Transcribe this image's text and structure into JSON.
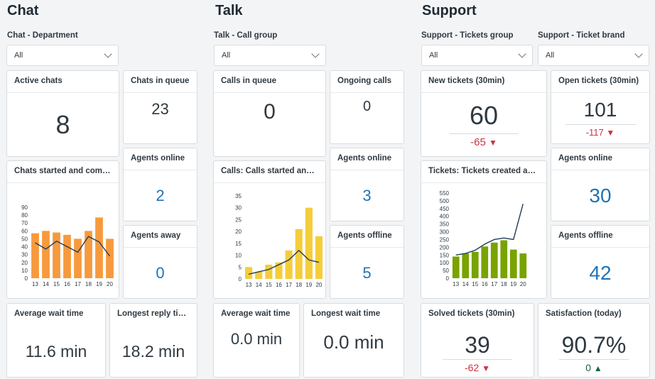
{
  "chat": {
    "title": "Chat",
    "filter": {
      "label": "Chat - Department",
      "value": "All"
    },
    "active_chats": {
      "title": "Active chats",
      "value": "8"
    },
    "chats_in_queue": {
      "title": "Chats in queue",
      "value": "23"
    },
    "agents_online": {
      "title": "Agents online",
      "value": "2"
    },
    "agents_away": {
      "title": "Agents away",
      "value": "0"
    },
    "chart_title": "Chats started and compl...",
    "avg_wait": {
      "title": "Average wait time",
      "value": "11.6 min"
    },
    "longest_reply": {
      "title": "Longest reply time",
      "value": "18.2 min"
    }
  },
  "talk": {
    "title": "Talk",
    "filter": {
      "label": "Talk - Call group",
      "value": "All"
    },
    "calls_in_queue": {
      "title": "Calls in queue",
      "value": "0"
    },
    "ongoing_calls": {
      "title": "Ongoing calls",
      "value": "0"
    },
    "agents_online": {
      "title": "Agents online",
      "value": "3"
    },
    "agents_offline": {
      "title": "Agents offline",
      "value": "5"
    },
    "chart_title": "Calls: Calls started and c...",
    "avg_wait": {
      "title": "Average wait time",
      "value": "0.0 min"
    },
    "longest_wait": {
      "title": "Longest wait time",
      "value": "0.0 min"
    }
  },
  "support": {
    "title": "Support",
    "filter_group": {
      "label": "Support - Tickets group",
      "value": "All"
    },
    "filter_brand": {
      "label": "Support - Ticket brand",
      "value": "All"
    },
    "new_tickets": {
      "title": "New tickets (30min)",
      "value": "60",
      "delta": "-65",
      "delta_dir": "down"
    },
    "open_tickets": {
      "title": "Open tickets (30min)",
      "value": "101",
      "delta": "-117",
      "delta_dir": "down"
    },
    "agents_online": {
      "title": "Agents online",
      "value": "30"
    },
    "agents_offline": {
      "title": "Agents offline",
      "value": "42"
    },
    "chart_title": "Tickets: Tickets created and ...",
    "solved_tickets": {
      "title": "Solved tickets (30min)",
      "value": "39",
      "delta": "-62",
      "delta_dir": "down"
    },
    "satisfaction": {
      "title": "Satisfaction (today)",
      "value": "90.7%",
      "delta": "0",
      "delta_dir": "up"
    }
  },
  "icons": {
    "down": "triangle-down-icon",
    "up": "triangle-up-icon",
    "chevron": "chevron-down-icon"
  },
  "colors": {
    "chat_bar": "#f79a3e",
    "talk_bar": "#f5cd3a",
    "support_bar": "#78a300",
    "line": "#1f3d5a",
    "blue": "#1f73b7",
    "red": "#cc3340",
    "green": "#186146"
  },
  "chart_data": [
    {
      "type": "bar",
      "categories": [
        "13",
        "14",
        "15",
        "16",
        "17",
        "18",
        "19",
        "20"
      ],
      "series": [
        {
          "values": [
            57,
            60,
            58,
            55,
            50,
            60,
            77,
            50
          ]
        },
        {
          "values": [
            45,
            37,
            47,
            40,
            33,
            53,
            46,
            28
          ]
        }
      ],
      "ylim": [
        0,
        90
      ],
      "yticks": [
        0,
        10,
        20,
        30,
        40,
        50,
        60,
        70,
        80,
        90
      ]
    },
    {
      "type": "bar",
      "categories": [
        "13",
        "14",
        "15",
        "16",
        "17",
        "18",
        "19",
        "20"
      ],
      "series": [
        {
          "values": [
            5,
            3,
            6,
            7,
            12,
            21,
            30,
            18
          ]
        },
        {
          "values": [
            2,
            3,
            4,
            6,
            8,
            12,
            8,
            7
          ]
        }
      ],
      "ylim": [
        0,
        35
      ],
      "yticks": [
        0,
        5,
        10,
        15,
        20,
        25,
        30,
        35
      ]
    },
    {
      "type": "bar",
      "categories": [
        "13",
        "14",
        "15",
        "16",
        "17",
        "18",
        "19",
        "20"
      ],
      "series": [
        {
          "values": [
            140,
            160,
            170,
            205,
            230,
            245,
            185,
            160
          ]
        },
        {
          "values": [
            150,
            160,
            180,
            220,
            250,
            260,
            250,
            480
          ]
        }
      ],
      "ylim": [
        0,
        550
      ],
      "yticks": [
        0,
        50,
        100,
        150,
        200,
        250,
        300,
        350,
        400,
        450,
        500,
        550
      ]
    }
  ]
}
